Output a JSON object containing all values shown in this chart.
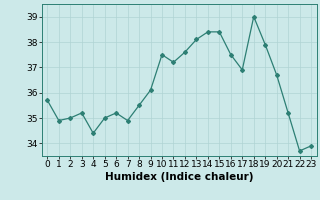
{
  "x": [
    0,
    1,
    2,
    3,
    4,
    5,
    6,
    7,
    8,
    9,
    10,
    11,
    12,
    13,
    14,
    15,
    16,
    17,
    18,
    19,
    20,
    21,
    22,
    23
  ],
  "y": [
    35.7,
    34.9,
    35.0,
    35.2,
    34.4,
    35.0,
    35.2,
    34.9,
    35.5,
    36.1,
    37.5,
    37.2,
    37.6,
    38.1,
    38.4,
    38.4,
    37.5,
    36.9,
    39.0,
    37.9,
    36.7,
    35.2,
    33.7,
    33.9
  ],
  "xlim": [
    -0.5,
    23.5
  ],
  "ylim": [
    33.5,
    39.5
  ],
  "yticks": [
    34,
    35,
    36,
    37,
    38,
    39
  ],
  "xticks": [
    0,
    1,
    2,
    3,
    4,
    5,
    6,
    7,
    8,
    9,
    10,
    11,
    12,
    13,
    14,
    15,
    16,
    17,
    18,
    19,
    20,
    21,
    22,
    23
  ],
  "xlabel": "Humidex (Indice chaleur)",
  "line_color": "#2d7f74",
  "marker": "D",
  "marker_size": 2.0,
  "bg_color": "#cce9e9",
  "grid_color": "#b0d4d4",
  "xlabel_fontsize": 7.5,
  "tick_fontsize": 6.5
}
